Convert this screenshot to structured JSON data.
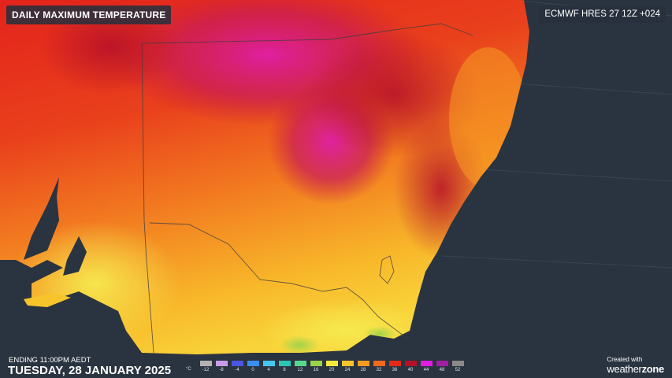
{
  "header": {
    "title": "DAILY MAXIMUM TEMPERATURE",
    "model": "ECMWF HRES 27 12Z +024"
  },
  "footer": {
    "ending": "ENDING 11:00PM AEDT",
    "date": "TUESDAY, 28 JANUARY 2025",
    "credit_line": "Created with",
    "brand_main": "weather",
    "brand_suffix": "zone"
  },
  "legend": {
    "unit": "°C",
    "ticks": [
      "-12",
      "-8",
      "-4",
      "0",
      "4",
      "8",
      "12",
      "16",
      "20",
      "24",
      "28",
      "32",
      "36",
      "40",
      "44",
      "48",
      "52"
    ],
    "colors": [
      "#b3b3b3",
      "#c79be8",
      "#4a55e0",
      "#3b8ef0",
      "#45c7f2",
      "#2ec4b6",
      "#55d88f",
      "#9ad24a",
      "#f2ea3a",
      "#f8c42c",
      "#f59b22",
      "#ef6a1c",
      "#e32a1a",
      "#b5102a",
      "#e01ee0",
      "#a01ea0",
      "#8a8a8a"
    ]
  },
  "colors": {
    "sea": "#2a3340",
    "land_hot": "#e3231c",
    "land_warm": "#f26b1f",
    "land_mild": "#f8c42c",
    "extreme": "#d61fb0"
  }
}
